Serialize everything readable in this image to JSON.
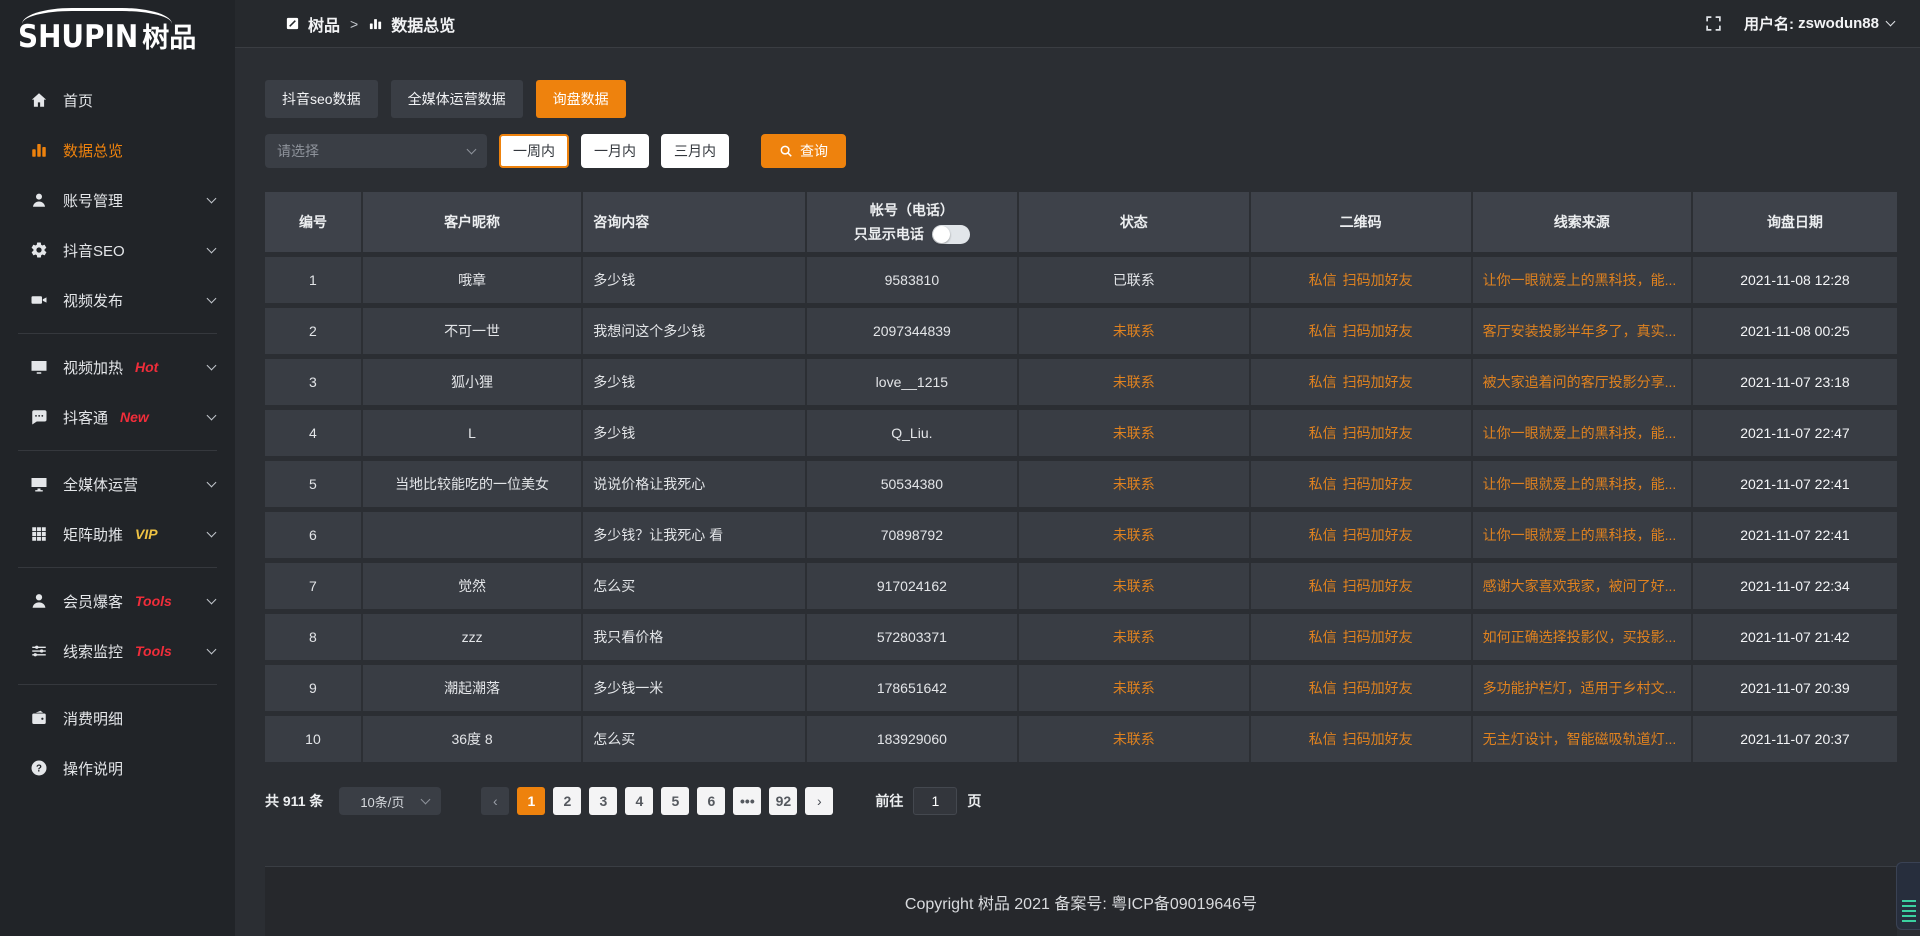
{
  "colors": {
    "accent": "#ee820d",
    "link_orange": "#e0821f",
    "badge_red": "#f02d3a",
    "badge_gold": "#eec243"
  },
  "sidebar": {
    "logo_en": "SHUPIN",
    "logo_cn": "树品",
    "groups": [
      {
        "items": [
          {
            "name": "home",
            "icon": "home-icon",
            "label": "首页"
          },
          {
            "name": "data-overview",
            "icon": "bar-chart-icon",
            "label": "数据总览",
            "active": true
          },
          {
            "name": "account-management",
            "icon": "user-icon",
            "label": "账号管理",
            "expandable": true
          },
          {
            "name": "douyin-seo",
            "icon": "gear-icon",
            "label": "抖音SEO",
            "expandable": true
          },
          {
            "name": "video-publish",
            "icon": "video-camera-icon",
            "label": "视频发布",
            "expandable": true
          }
        ]
      },
      {
        "items": [
          {
            "name": "video-heating",
            "icon": "tv-icon",
            "label": "视频加热",
            "badge": "Hot",
            "badge_style": "red",
            "expandable": true
          },
          {
            "name": "douketong",
            "icon": "chat-icon",
            "label": "抖客通",
            "badge": "New",
            "badge_style": "red",
            "expandable": true
          }
        ]
      },
      {
        "items": [
          {
            "name": "omni-media-operation",
            "icon": "monitor-icon",
            "label": "全媒体运营",
            "expandable": true
          },
          {
            "name": "matrix-boost",
            "icon": "grid-icon",
            "label": "矩阵助推",
            "badge": "VIP",
            "badge_style": "gold",
            "expandable": true
          }
        ]
      },
      {
        "items": [
          {
            "name": "member-baoke",
            "icon": "user-solid-icon",
            "label": "会员爆客",
            "badge": "Tools",
            "badge_style": "red",
            "expandable": true
          },
          {
            "name": "lead-monitoring",
            "icon": "sliders-icon",
            "label": "线索监控",
            "badge": "Tools",
            "badge_style": "red",
            "expandable": true
          }
        ]
      },
      {
        "items": [
          {
            "name": "consumption-details",
            "icon": "wallet-icon",
            "label": "消费明细"
          },
          {
            "name": "operation-guide",
            "icon": "question-circle-icon",
            "label": "操作说明"
          }
        ]
      }
    ]
  },
  "header": {
    "breadcrumb_root": "树品",
    "breadcrumb_separator": ">",
    "breadcrumb_current": "数据总览",
    "username_label": "用户名:",
    "username": "zswodun88"
  },
  "tabs": [
    {
      "name": "douyin-seo-data",
      "label": "抖音seo数据"
    },
    {
      "name": "omni-media-data",
      "label": "全媒体运营数据"
    },
    {
      "name": "inquiry-data",
      "label": "询盘数据",
      "active": true
    }
  ],
  "filters": {
    "select_placeholder": "请选择",
    "periods": [
      {
        "name": "one-week",
        "label": "一周内",
        "active": true
      },
      {
        "name": "one-month",
        "label": "一月内"
      },
      {
        "name": "three-months",
        "label": "三月内"
      }
    ],
    "search_label": "查询"
  },
  "table": {
    "columns": [
      "编号",
      "客户昵称",
      "咨询内容",
      {
        "line1": "帐号（电话）",
        "line2": "只显示电话"
      },
      "状态",
      "二维码",
      "线索来源",
      "询盘日期"
    ],
    "rows": [
      {
        "id": "1",
        "nickname": "哦章",
        "content": "多少钱",
        "account": "9583810",
        "status": "已联系",
        "status_type": "contacted",
        "qr_links": [
          "私信",
          "扫码加好友"
        ],
        "source": "让你一眼就爱上的黑科技，能...",
        "date": "2021-11-08 12:28"
      },
      {
        "id": "2",
        "nickname": "不可一世",
        "content": "我想问这个多少钱",
        "account": "2097344839",
        "status": "未联系",
        "status_type": "pending",
        "qr_links": [
          "私信",
          "扫码加好友"
        ],
        "source": "客厅安装投影半年多了，真实...",
        "date": "2021-11-08 00:25"
      },
      {
        "id": "3",
        "nickname": "狐小狸",
        "content": "多少钱",
        "account": "love__1215",
        "status": "未联系",
        "status_type": "pending",
        "qr_links": [
          "私信",
          "扫码加好友"
        ],
        "source": "被大家追着问的客厅投影分享...",
        "date": "2021-11-07 23:18"
      },
      {
        "id": "4",
        "nickname": "L",
        "content": "多少钱",
        "account": "Q_Liu.",
        "status": "未联系",
        "status_type": "pending",
        "qr_links": [
          "私信",
          "扫码加好友"
        ],
        "source": "让你一眼就爱上的黑科技，能...",
        "date": "2021-11-07 22:47"
      },
      {
        "id": "5",
        "nickname": "当地比较能吃的一位美女",
        "content": "说说价格让我死心",
        "account": "50534380",
        "status": "未联系",
        "status_type": "pending",
        "qr_links": [
          "私信",
          "扫码加好友"
        ],
        "source": "让你一眼就爱上的黑科技，能...",
        "date": "2021-11-07 22:41"
      },
      {
        "id": "6",
        "nickname": "",
        "content": "多少钱？让我死心 看",
        "account": "70898792",
        "status": "未联系",
        "status_type": "pending",
        "qr_links": [
          "私信",
          "扫码加好友"
        ],
        "source": "让你一眼就爱上的黑科技，能...",
        "date": "2021-11-07 22:41"
      },
      {
        "id": "7",
        "nickname": "觉然",
        "content": "怎么买",
        "account": "917024162",
        "status": "未联系",
        "status_type": "pending",
        "qr_links": [
          "私信",
          "扫码加好友"
        ],
        "source": "感谢大家喜欢我家，被问了好...",
        "date": "2021-11-07 22:34"
      },
      {
        "id": "8",
        "nickname": "zzz",
        "content": "我只看价格",
        "account": "572803371",
        "status": "未联系",
        "status_type": "pending",
        "qr_links": [
          "私信",
          "扫码加好友"
        ],
        "source": "如何正确选择投影仪，买投影...",
        "date": "2021-11-07 21:42"
      },
      {
        "id": "9",
        "nickname": "潮起潮落",
        "content": "多少钱一米",
        "account": "178651642",
        "status": "未联系",
        "status_type": "pending",
        "qr_links": [
          "私信",
          "扫码加好友"
        ],
        "source": "多功能护栏灯，适用于乡村文...",
        "date": "2021-11-07 20:39"
      },
      {
        "id": "10",
        "nickname": "36度 8",
        "content": "怎么买",
        "account": "183929060",
        "status": "未联系",
        "status_type": "pending",
        "qr_links": [
          "私信",
          "扫码加好友"
        ],
        "source": "无主灯设计，智能磁吸轨道灯...",
        "date": "2021-11-07 20:37"
      }
    ]
  },
  "pagination": {
    "total": "共 911 条",
    "page_size": "10条/页",
    "pages": [
      "1",
      "2",
      "3",
      "4",
      "5",
      "6",
      "•••",
      "92"
    ],
    "active": "1",
    "prev": "‹",
    "next": "›",
    "goto_label": "前往",
    "goto_value": "1",
    "goto_suffix": "页"
  },
  "footer": {
    "text": "Copyright 树品 2021 备案号: 粤ICP备09019646号"
  }
}
